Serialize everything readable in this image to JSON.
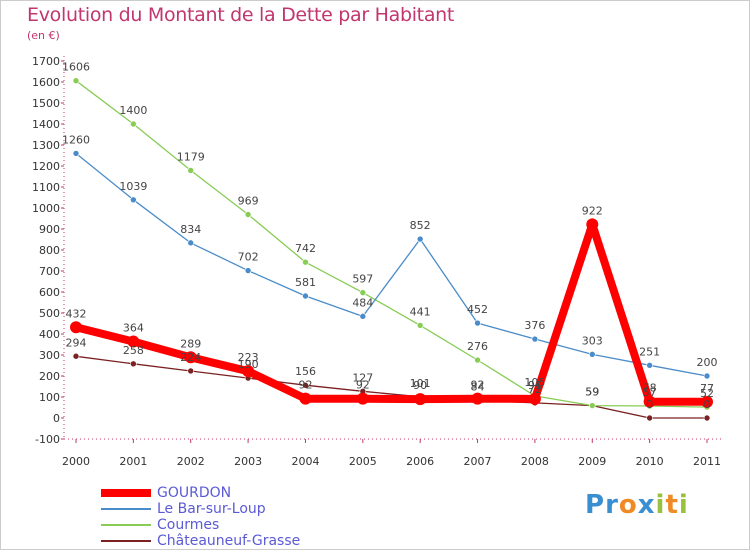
{
  "header": {
    "title": "Evolution du Montant de la Dette par Habitant",
    "unit": "(en €)"
  },
  "logo": {
    "text": "Proxiti",
    "letters": [
      {
        "ch": "P",
        "color": "#3a8fd1"
      },
      {
        "ch": "r",
        "color": "#3a8fd1"
      },
      {
        "ch": "o",
        "color": "#f08a24"
      },
      {
        "ch": "x",
        "color": "#3a8fd1"
      },
      {
        "ch": "i",
        "color": "#9ac13c"
      },
      {
        "ch": "t",
        "color": "#f08a24"
      },
      {
        "ch": "i",
        "color": "#9ac13c"
      }
    ]
  },
  "chart_data": {
    "type": "line",
    "title": "Evolution du Montant de la Dette par Habitant",
    "subtitle": "(en €)",
    "x": [
      "2000",
      "2001",
      "2002",
      "2003",
      "2004",
      "2005",
      "2006",
      "2007",
      "2008",
      "2009",
      "2010",
      "2011"
    ],
    "ylim": [
      -100,
      1700
    ],
    "yticks": [
      -100,
      0,
      100,
      200,
      300,
      400,
      500,
      600,
      700,
      800,
      900,
      1000,
      1100,
      1200,
      1300,
      1400,
      1500,
      1600,
      1700
    ],
    "grid": false,
    "legend": "bottom-left",
    "series": [
      {
        "name": "GOURDON",
        "color": "#ff0000",
        "values": [
          432,
          364,
          289,
          223,
          92,
          92,
          90,
          92,
          91,
          922,
          78,
          77
        ]
      },
      {
        "name": "Le Bar-sur-Loup",
        "color": "#4a8cc9",
        "values": [
          1260,
          1039,
          834,
          702,
          581,
          484,
          852,
          452,
          376,
          303,
          251,
          200
        ]
      },
      {
        "name": "Courmes",
        "color": "#88cc55",
        "values": [
          1606,
          1400,
          1179,
          969,
          742,
          597,
          441,
          276,
          105,
          59,
          57,
          52
        ]
      },
      {
        "name": "Châteauneuf-Grasse",
        "color": "#7a2222",
        "values": [
          294,
          258,
          224,
          190,
          156,
          127,
          101,
          84,
          72,
          59,
          0,
          0
        ]
      }
    ]
  }
}
